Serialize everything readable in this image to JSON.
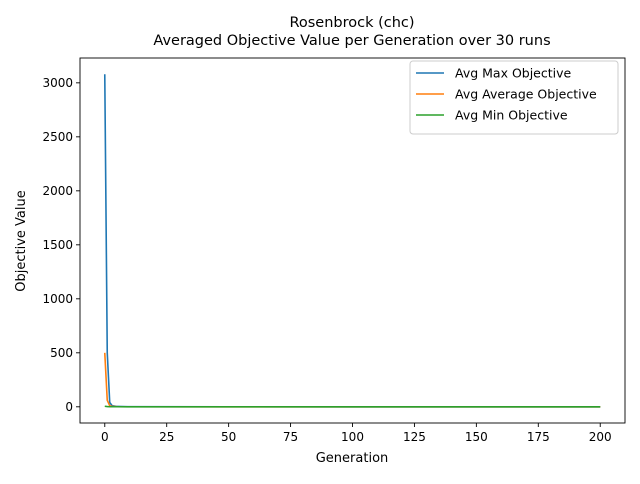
{
  "chart_data": {
    "type": "line",
    "title": "Rosenbrock (chc)",
    "subtitle": "Averaged Objective Value per Generation over 30 runs",
    "xlabel": "Generation",
    "ylabel": "Objective Value",
    "xlim": [
      -10,
      210
    ],
    "ylim": [
      -150,
      3230
    ],
    "xticks": [
      0,
      25,
      50,
      75,
      100,
      125,
      150,
      175,
      200
    ],
    "yticks": [
      0,
      500,
      1000,
      1500,
      2000,
      2500,
      3000
    ],
    "grid": false,
    "legend_position": "top-right",
    "series": [
      {
        "name": "Avg Max Objective",
        "color": "#1f77b4",
        "points": [
          [
            0,
            3080
          ],
          [
            1,
            500
          ],
          [
            2,
            40
          ],
          [
            3,
            10
          ],
          [
            5,
            3
          ],
          [
            10,
            1
          ],
          [
            50,
            0.5
          ],
          [
            100,
            0.3
          ],
          [
            150,
            0.2
          ],
          [
            200,
            0.1
          ]
        ]
      },
      {
        "name": "Avg Average Objective",
        "color": "#ff7f0e",
        "points": [
          [
            0,
            500
          ],
          [
            1,
            60
          ],
          [
            2,
            10
          ],
          [
            3,
            3
          ],
          [
            5,
            1
          ],
          [
            10,
            0.5
          ],
          [
            50,
            0.2
          ],
          [
            100,
            0.1
          ],
          [
            150,
            0.1
          ],
          [
            200,
            0.05
          ]
        ]
      },
      {
        "name": "Avg Min Objective",
        "color": "#2ca02c",
        "points": [
          [
            0,
            5
          ],
          [
            1,
            2
          ],
          [
            2,
            1
          ],
          [
            5,
            0.5
          ],
          [
            10,
            0.3
          ],
          [
            50,
            0.1
          ],
          [
            100,
            0.05
          ],
          [
            150,
            0.03
          ],
          [
            200,
            0.02
          ]
        ]
      }
    ]
  }
}
